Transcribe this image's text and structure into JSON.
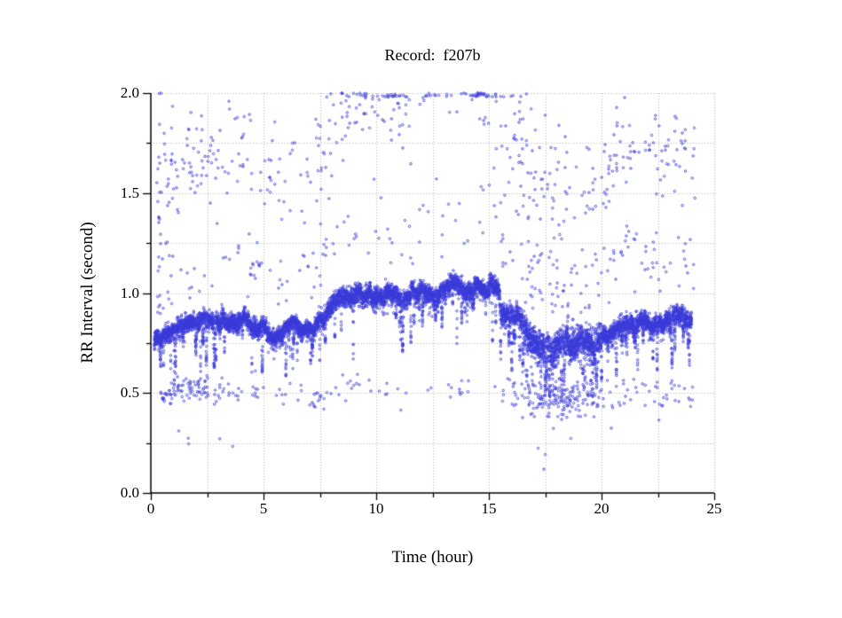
{
  "page": {
    "background": "#ffffff"
  },
  "chart_data": {
    "type": "scatter",
    "title": "Record:  f207b",
    "xlabel": "Time (hour)",
    "ylabel": "RR Interval (second)",
    "xlim": [
      0,
      25
    ],
    "ylim": [
      0.0,
      2.0
    ],
    "x_major_ticks": [
      0,
      5,
      10,
      15,
      20,
      25
    ],
    "x_tick_labels": [
      "0",
      "5",
      "10",
      "15",
      "20",
      "25"
    ],
    "x_minor_step": 2.5,
    "y_major_ticks": [
      0.0,
      0.5,
      1.0,
      1.5,
      2.0
    ],
    "y_tick_labels": [
      "0.0",
      "0.5",
      "1.0",
      "1.5",
      "2.0"
    ],
    "y_minor_step": 0.25,
    "grid": {
      "show": true,
      "style": "dotted",
      "color": "#b0b0b0",
      "at": "every 0.25 s and every 2.5 h"
    },
    "axis_color": "#000000",
    "marker": {
      "shape": "open-circle",
      "color": "#3a3ad8",
      "radius_px": 1.25
    },
    "legend": null,
    "description": "24-hour RR-interval tachogram: dense beat-to-beat band near 0.8 s (hours 0-8), rising to about 1.0 s (hours 8-15.5), dropping to a noisier 0.7-0.8 s band (hours 16-20), then about 0.85 s (hours 20-24); sparse artifact points near twice the band value (clipped at 2.0 s) and near half the band value (0.4-0.55 s).",
    "band": {
      "n": 8800,
      "t_start": 0.15,
      "t_end": 24.0,
      "profile": [
        [
          0.15,
          0.74
        ],
        [
          0.3,
          0.78
        ],
        [
          0.8,
          0.8
        ],
        [
          1.5,
          0.83
        ],
        [
          2.5,
          0.85
        ],
        [
          3.5,
          0.84
        ],
        [
          4.2,
          0.86
        ],
        [
          5.0,
          0.82
        ],
        [
          5.6,
          0.8
        ],
        [
          6.2,
          0.85
        ],
        [
          7.0,
          0.83
        ],
        [
          7.6,
          0.86
        ],
        [
          8.2,
          0.93
        ],
        [
          8.8,
          0.97
        ],
        [
          9.5,
          1.0
        ],
        [
          10.5,
          1.0
        ],
        [
          11.2,
          0.97
        ],
        [
          12.0,
          1.0
        ],
        [
          12.8,
          0.99
        ],
        [
          13.4,
          1.03
        ],
        [
          14.2,
          1.02
        ],
        [
          15.0,
          1.03
        ],
        [
          15.45,
          1.0
        ],
        [
          15.55,
          0.9
        ],
        [
          16.0,
          0.92
        ],
        [
          16.4,
          0.9
        ],
        [
          16.7,
          0.8
        ],
        [
          17.2,
          0.74
        ],
        [
          17.8,
          0.72
        ],
        [
          18.3,
          0.75
        ],
        [
          18.8,
          0.73
        ],
        [
          19.3,
          0.76
        ],
        [
          19.8,
          0.78
        ],
        [
          20.3,
          0.82
        ],
        [
          21.0,
          0.86
        ],
        [
          21.7,
          0.84
        ],
        [
          22.3,
          0.86
        ],
        [
          23.0,
          0.85
        ],
        [
          23.6,
          0.88
        ],
        [
          24.0,
          0.84
        ]
      ],
      "jitter_regions": [
        {
          "t0": 0.0,
          "t1": 7.8,
          "s": 0.02
        },
        {
          "t0": 7.8,
          "t1": 15.45,
          "s": 0.022
        },
        {
          "t0": 15.45,
          "t1": 16.6,
          "s": 0.026
        },
        {
          "t0": 16.6,
          "t1": 20.0,
          "s": 0.038
        },
        {
          "t0": 20.0,
          "t1": 24.0,
          "s": 0.022
        }
      ],
      "dip_regions": [
        {
          "t0": 0.0,
          "t1": 2.2,
          "rate": 0.016,
          "dmin": 0.06,
          "dmax": 0.28
        },
        {
          "t0": 2.2,
          "t1": 7.8,
          "rate": 0.011,
          "dmin": 0.06,
          "dmax": 0.26
        },
        {
          "t0": 7.8,
          "t1": 15.45,
          "rate": 0.008,
          "dmin": 0.08,
          "dmax": 0.3
        },
        {
          "t0": 15.45,
          "t1": 20.0,
          "rate": 0.014,
          "dmin": 0.08,
          "dmax": 0.3
        },
        {
          "t0": 20.0,
          "t1": 24.0,
          "rate": 0.01,
          "dmin": 0.06,
          "dmax": 0.26
        }
      ]
    },
    "artifact_clusters": [
      {
        "t0": 0.3,
        "t1": 0.5,
        "n": 14,
        "factor": 1.8,
        "sigma": 0.35
      },
      {
        "t0": 0.25,
        "t1": 1.1,
        "n": 26,
        "factor": 2.0,
        "sigma": 0.18
      },
      {
        "t0": 1.1,
        "t1": 3.6,
        "n": 55,
        "factor": 2.0,
        "sigma": 0.12
      },
      {
        "t0": 3.6,
        "t1": 7.2,
        "n": 48,
        "factor": 2.0,
        "sigma": 0.12
      },
      {
        "t0": 7.2,
        "t1": 9.0,
        "n": 42,
        "factor": 2.0,
        "sigma": 0.18
      },
      {
        "t0": 9.0,
        "t1": 11.5,
        "n": 60,
        "factor": 2.0,
        "sigma": 0.12
      },
      {
        "t0": 11.5,
        "t1": 14.3,
        "n": 22,
        "factor": 2.0,
        "sigma": 0.12
      },
      {
        "t0": 14.3,
        "t1": 16.6,
        "n": 65,
        "factor": 2.0,
        "sigma": 0.22
      },
      {
        "t0": 16.6,
        "t1": 19.8,
        "n": 70,
        "factor": 2.0,
        "sigma": 0.22
      },
      {
        "t0": 19.8,
        "t1": 21.6,
        "n": 40,
        "factor": 2.0,
        "sigma": 0.12
      },
      {
        "t0": 21.6,
        "t1": 24.2,
        "n": 45,
        "factor": 2.0,
        "sigma": 0.12
      },
      {
        "t0": 0.3,
        "t1": 1.1,
        "n": 15,
        "factor": 1.35,
        "sigma": 0.12
      },
      {
        "t0": 1.1,
        "t1": 8.0,
        "n": 60,
        "factor": 1.35,
        "sigma": 0.12
      },
      {
        "t0": 8.0,
        "t1": 15.5,
        "n": 45,
        "factor": 1.35,
        "sigma": 0.12
      },
      {
        "t0": 15.5,
        "t1": 20.0,
        "n": 70,
        "factor": 1.35,
        "sigma": 0.12
      },
      {
        "t0": 20.0,
        "t1": 24.2,
        "n": 50,
        "factor": 1.35,
        "sigma": 0.12
      },
      {
        "t0": 0.4,
        "t1": 2.6,
        "n": 80,
        "factor": 0.62,
        "sigma": 0.03
      },
      {
        "t0": 2.6,
        "t1": 6.5,
        "n": 35,
        "factor": 0.6,
        "sigma": 0.04
      },
      {
        "t0": 6.5,
        "t1": 9.3,
        "n": 30,
        "factor": 0.55,
        "sigma": 0.03
      },
      {
        "t0": 9.3,
        "t1": 15.3,
        "n": 22,
        "factor": 0.52,
        "sigma": 0.04
      },
      {
        "t0": 15.3,
        "t1": 16.6,
        "n": 18,
        "factor": 0.55,
        "sigma": 0.05
      },
      {
        "t0": 16.6,
        "t1": 19.6,
        "n": 150,
        "factor": 0.65,
        "sigma": 0.05
      },
      {
        "t0": 19.6,
        "t1": 21.5,
        "n": 25,
        "factor": 0.6,
        "sigma": 0.04
      },
      {
        "t0": 21.5,
        "t1": 24.2,
        "n": 28,
        "factor": 0.58,
        "sigma": 0.05
      },
      {
        "t0": 1.2,
        "t1": 3.8,
        "n": 5,
        "factor": 0.3,
        "sigma": 0.05
      },
      {
        "t0": 17.0,
        "t1": 21.6,
        "n": 5,
        "factor": 0.3,
        "sigma": 0.05
      }
    ]
  }
}
